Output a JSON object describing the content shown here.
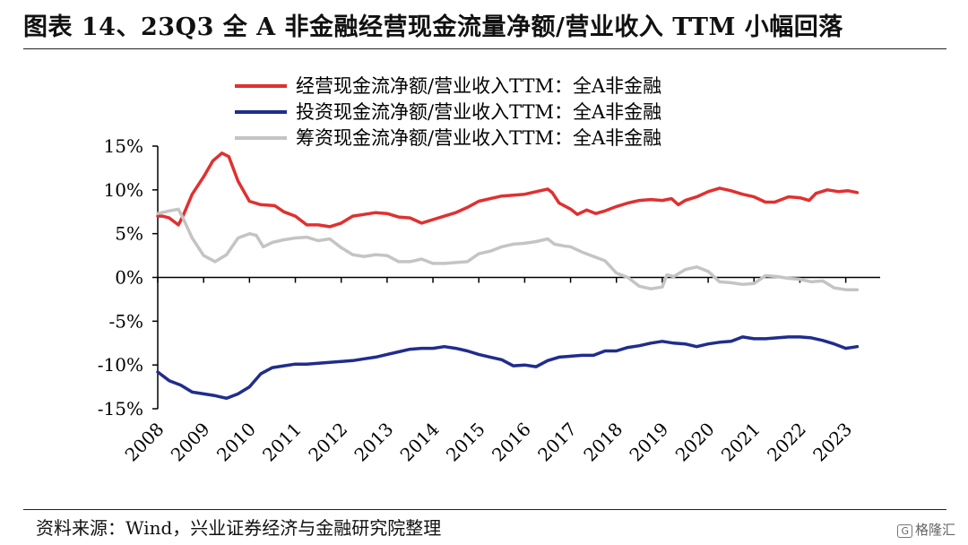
{
  "header": {
    "title": "图表 14、23Q3 全 A 非金融经营现金流量净额/营业收入 TTM 小幅回落"
  },
  "footer": {
    "source": "资料来源：Wind，兴业证券经济与金融研究院整理",
    "watermark": "格隆汇",
    "watermark_icon": "G"
  },
  "chart_data": {
    "type": "line",
    "title": "",
    "xlabel": "",
    "ylabel": "",
    "ylim": [
      -15,
      15
    ],
    "xlim": [
      2008.0,
      2023.75
    ],
    "y_ticks": [
      15,
      10,
      5,
      0,
      -5,
      -10,
      -15
    ],
    "y_tick_labels": [
      "15%",
      "10%",
      "5%",
      "0%",
      "-5%",
      "-10%",
      "-15%"
    ],
    "x_ticks": [
      2008,
      2009,
      2010,
      2011,
      2012,
      2013,
      2014,
      2015,
      2016,
      2017,
      2018,
      2019,
      2020,
      2021,
      2022,
      2023
    ],
    "x_tick_labels": [
      "2008",
      "2009",
      "2010",
      "2011",
      "2012",
      "2013",
      "2014",
      "2015",
      "2016",
      "2017",
      "2018",
      "2019",
      "2020",
      "2021",
      "2022",
      "2023"
    ],
    "grid": false,
    "legend_position": "top",
    "series": [
      {
        "name": "经营现金流净额/营业收入TTM：全A非金融",
        "color": "#e03030",
        "points": [
          [
            2008.0,
            7.0
          ],
          [
            2008.1,
            7.0
          ],
          [
            2008.25,
            6.8
          ],
          [
            2008.45,
            6.0
          ],
          [
            2008.55,
            7.0
          ],
          [
            2008.75,
            9.5
          ],
          [
            2009.0,
            11.5
          ],
          [
            2009.2,
            13.3
          ],
          [
            2009.4,
            14.2
          ],
          [
            2009.55,
            13.8
          ],
          [
            2009.75,
            11.0
          ],
          [
            2010.0,
            8.7
          ],
          [
            2010.25,
            8.3
          ],
          [
            2010.55,
            8.2
          ],
          [
            2010.75,
            7.5
          ],
          [
            2011.0,
            7.0
          ],
          [
            2011.25,
            6.0
          ],
          [
            2011.5,
            6.0
          ],
          [
            2011.75,
            5.8
          ],
          [
            2012.0,
            6.2
          ],
          [
            2012.25,
            7.0
          ],
          [
            2012.5,
            7.2
          ],
          [
            2012.75,
            7.4
          ],
          [
            2013.0,
            7.3
          ],
          [
            2013.25,
            6.9
          ],
          [
            2013.5,
            6.8
          ],
          [
            2013.75,
            6.2
          ],
          [
            2014.0,
            6.6
          ],
          [
            2014.25,
            7.0
          ],
          [
            2014.5,
            7.4
          ],
          [
            2014.75,
            8.0
          ],
          [
            2015.0,
            8.7
          ],
          [
            2015.25,
            9.0
          ],
          [
            2015.5,
            9.3
          ],
          [
            2015.75,
            9.4
          ],
          [
            2016.0,
            9.5
          ],
          [
            2016.25,
            9.8
          ],
          [
            2016.5,
            10.1
          ],
          [
            2016.6,
            9.7
          ],
          [
            2016.75,
            8.5
          ],
          [
            2017.0,
            7.8
          ],
          [
            2017.15,
            7.2
          ],
          [
            2017.35,
            7.7
          ],
          [
            2017.55,
            7.3
          ],
          [
            2017.75,
            7.6
          ],
          [
            2018.0,
            8.1
          ],
          [
            2018.25,
            8.5
          ],
          [
            2018.5,
            8.8
          ],
          [
            2018.75,
            8.9
          ],
          [
            2019.0,
            8.8
          ],
          [
            2019.2,
            9.0
          ],
          [
            2019.35,
            8.3
          ],
          [
            2019.5,
            8.8
          ],
          [
            2019.75,
            9.2
          ],
          [
            2020.0,
            9.8
          ],
          [
            2020.25,
            10.2
          ],
          [
            2020.5,
            9.9
          ],
          [
            2020.75,
            9.5
          ],
          [
            2021.0,
            9.2
          ],
          [
            2021.25,
            8.6
          ],
          [
            2021.45,
            8.6
          ],
          [
            2021.75,
            9.2
          ],
          [
            2022.0,
            9.1
          ],
          [
            2022.2,
            8.8
          ],
          [
            2022.35,
            9.6
          ],
          [
            2022.6,
            10.0
          ],
          [
            2022.85,
            9.8
          ],
          [
            2023.05,
            9.9
          ],
          [
            2023.25,
            9.7
          ]
        ]
      },
      {
        "name": "投资现金流净额/营业收入TTM：全A非金融",
        "color": "#1f2d8c",
        "points": [
          [
            2008.0,
            -10.8
          ],
          [
            2008.25,
            -11.8
          ],
          [
            2008.5,
            -12.3
          ],
          [
            2008.75,
            -13.1
          ],
          [
            2009.0,
            -13.3
          ],
          [
            2009.25,
            -13.5
          ],
          [
            2009.5,
            -13.8
          ],
          [
            2009.75,
            -13.3
          ],
          [
            2010.0,
            -12.5
          ],
          [
            2010.25,
            -11.0
          ],
          [
            2010.5,
            -10.3
          ],
          [
            2010.75,
            -10.1
          ],
          [
            2011.0,
            -9.9
          ],
          [
            2011.25,
            -9.9
          ],
          [
            2011.5,
            -9.8
          ],
          [
            2011.75,
            -9.7
          ],
          [
            2012.0,
            -9.6
          ],
          [
            2012.25,
            -9.5
          ],
          [
            2012.5,
            -9.3
          ],
          [
            2012.75,
            -9.1
          ],
          [
            2013.0,
            -8.8
          ],
          [
            2013.25,
            -8.5
          ],
          [
            2013.5,
            -8.2
          ],
          [
            2013.75,
            -8.1
          ],
          [
            2014.0,
            -8.1
          ],
          [
            2014.25,
            -7.9
          ],
          [
            2014.5,
            -8.1
          ],
          [
            2014.75,
            -8.4
          ],
          [
            2015.0,
            -8.8
          ],
          [
            2015.25,
            -9.1
          ],
          [
            2015.5,
            -9.4
          ],
          [
            2015.75,
            -10.1
          ],
          [
            2016.0,
            -10.0
          ],
          [
            2016.25,
            -10.2
          ],
          [
            2016.5,
            -9.5
          ],
          [
            2016.75,
            -9.1
          ],
          [
            2017.0,
            -9.0
          ],
          [
            2017.25,
            -8.9
          ],
          [
            2017.5,
            -8.9
          ],
          [
            2017.75,
            -8.4
          ],
          [
            2018.0,
            -8.4
          ],
          [
            2018.25,
            -8.0
          ],
          [
            2018.5,
            -7.8
          ],
          [
            2018.75,
            -7.5
          ],
          [
            2019.0,
            -7.3
          ],
          [
            2019.25,
            -7.5
          ],
          [
            2019.5,
            -7.6
          ],
          [
            2019.75,
            -7.9
          ],
          [
            2020.0,
            -7.6
          ],
          [
            2020.25,
            -7.4
          ],
          [
            2020.5,
            -7.3
          ],
          [
            2020.75,
            -6.8
          ],
          [
            2021.0,
            -7.0
          ],
          [
            2021.25,
            -7.0
          ],
          [
            2021.5,
            -6.9
          ],
          [
            2021.75,
            -6.8
          ],
          [
            2022.0,
            -6.8
          ],
          [
            2022.25,
            -6.9
          ],
          [
            2022.5,
            -7.2
          ],
          [
            2022.75,
            -7.6
          ],
          [
            2023.0,
            -8.1
          ],
          [
            2023.25,
            -7.9
          ]
        ]
      },
      {
        "name": "筹资现金流净额/营业收入TTM：全A非金融",
        "color": "#c4c4c4",
        "points": [
          [
            2008.0,
            7.3
          ],
          [
            2008.25,
            7.6
          ],
          [
            2008.45,
            7.8
          ],
          [
            2008.55,
            6.8
          ],
          [
            2008.75,
            4.5
          ],
          [
            2009.0,
            2.5
          ],
          [
            2009.25,
            1.8
          ],
          [
            2009.5,
            2.6
          ],
          [
            2009.75,
            4.5
          ],
          [
            2010.0,
            5.0
          ],
          [
            2010.15,
            4.8
          ],
          [
            2010.3,
            3.5
          ],
          [
            2010.5,
            4.0
          ],
          [
            2010.75,
            4.3
          ],
          [
            2011.0,
            4.5
          ],
          [
            2011.25,
            4.6
          ],
          [
            2011.5,
            4.2
          ],
          [
            2011.75,
            4.4
          ],
          [
            2012.0,
            3.4
          ],
          [
            2012.25,
            2.6
          ],
          [
            2012.5,
            2.4
          ],
          [
            2012.75,
            2.6
          ],
          [
            2013.0,
            2.5
          ],
          [
            2013.25,
            1.8
          ],
          [
            2013.5,
            1.8
          ],
          [
            2013.75,
            2.1
          ],
          [
            2014.0,
            1.6
          ],
          [
            2014.25,
            1.6
          ],
          [
            2014.5,
            1.7
          ],
          [
            2014.75,
            1.8
          ],
          [
            2015.0,
            2.7
          ],
          [
            2015.25,
            3.0
          ],
          [
            2015.5,
            3.5
          ],
          [
            2015.75,
            3.8
          ],
          [
            2016.0,
            3.9
          ],
          [
            2016.25,
            4.1
          ],
          [
            2016.5,
            4.4
          ],
          [
            2016.65,
            3.8
          ],
          [
            2016.85,
            3.6
          ],
          [
            2017.0,
            3.5
          ],
          [
            2017.25,
            2.9
          ],
          [
            2017.5,
            2.4
          ],
          [
            2017.75,
            1.9
          ],
          [
            2018.0,
            0.5
          ],
          [
            2018.25,
            0.0
          ],
          [
            2018.5,
            -1.0
          ],
          [
            2018.75,
            -1.3
          ],
          [
            2019.0,
            -1.1
          ],
          [
            2019.1,
            0.3
          ],
          [
            2019.25,
            0.1
          ],
          [
            2019.5,
            0.9
          ],
          [
            2019.75,
            1.2
          ],
          [
            2020.0,
            0.7
          ],
          [
            2020.25,
            -0.5
          ],
          [
            2020.5,
            -0.6
          ],
          [
            2020.75,
            -0.8
          ],
          [
            2021.0,
            -0.7
          ],
          [
            2021.25,
            0.2
          ],
          [
            2021.5,
            0.1
          ],
          [
            2021.75,
            -0.1
          ],
          [
            2022.0,
            -0.2
          ],
          [
            2022.25,
            -0.5
          ],
          [
            2022.5,
            -0.4
          ],
          [
            2022.75,
            -1.2
          ],
          [
            2023.0,
            -1.4
          ],
          [
            2023.25,
            -1.4
          ]
        ]
      }
    ]
  }
}
